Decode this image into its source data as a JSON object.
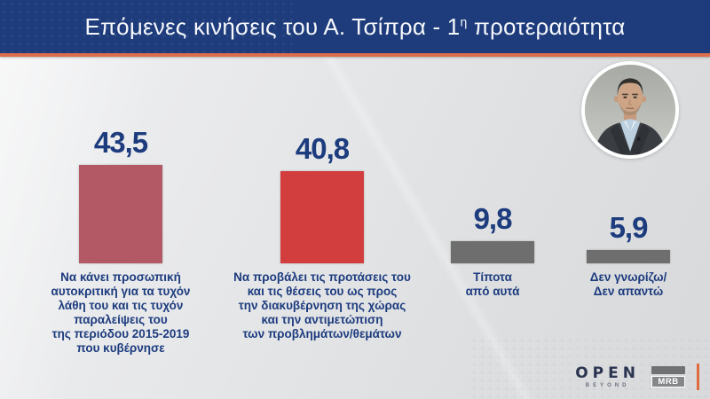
{
  "header": {
    "title_prefix": "Επόμενες κινήσεις του Α. Τσίπρα - 1",
    "title_superscript": "η",
    "title_suffix": " προτεραιότητα"
  },
  "colors": {
    "header_bg": "#1e3c7c",
    "accent_line": "#dd6e4a",
    "text_navy": "#1d3c7e",
    "bar_maroon": "#b25965",
    "bar_red": "#d23e3e",
    "bar_gray": "#6e6e6e"
  },
  "chart_data": {
    "type": "bar",
    "title": "Επόμενες κινήσεις του Α. Τσίπρα - 1η προτεραιότητα",
    "xlabel": "",
    "ylabel": "",
    "ylim": [
      0,
      50
    ],
    "grid": false,
    "legend": false,
    "value_format": "comma-decimal-percent",
    "categories": [
      "Να κάνει προσωπική αυτοκριτική για τα τυχόν λάθη του και τις τυχόν παραλείψεις του της περιόδου 2015-2019 που κυβέρνησε",
      "Να προβάλει τις προτάσεις του και τις θέσεις του ως προς την διακυβέρνηση της χώρας και την αντιμετώπιση των προβλημάτων/θεμάτων",
      "Τίποτα από αυτά",
      "Δεν γνωρίζω/Δεν απαντώ"
    ],
    "values": [
      43.5,
      40.8,
      9.8,
      5.9
    ],
    "items": [
      {
        "value": 43.5,
        "value_label": "43,5",
        "color": "#b25965",
        "label_lines": [
          "Να κάνει προσωπική",
          "αυτοκριτική για τα τυχόν",
          "λάθη του και τις τυχόν",
          "παραλείψεις του",
          "της περιόδου 2015-2019",
          "που κυβέρνησε"
        ]
      },
      {
        "value": 40.8,
        "value_label": "40,8",
        "color": "#d23e3e",
        "label_lines": [
          "Να προβάλει τις προτάσεις του",
          "και τις θέσεις του ως προς",
          "την διακυβέρνηση της χώρας",
          "και την αντιμετώπιση",
          "των προβλημάτων/θεμάτων"
        ]
      },
      {
        "value": 9.8,
        "value_label": "9,8",
        "color": "#6e6e6e",
        "label_lines": [
          "Τίποτα",
          "από αυτά"
        ]
      },
      {
        "value": 5.9,
        "value_label": "5,9",
        "color": "#6e6e6e",
        "label_lines": [
          "Δεν γνωρίζω/",
          "Δεν απαντώ"
        ]
      }
    ]
  },
  "photo": {
    "subject": "tsipras-portrait"
  },
  "branding": {
    "channel": "OPEN",
    "channel_tagline": "BEYOND",
    "agency": "MRB"
  }
}
